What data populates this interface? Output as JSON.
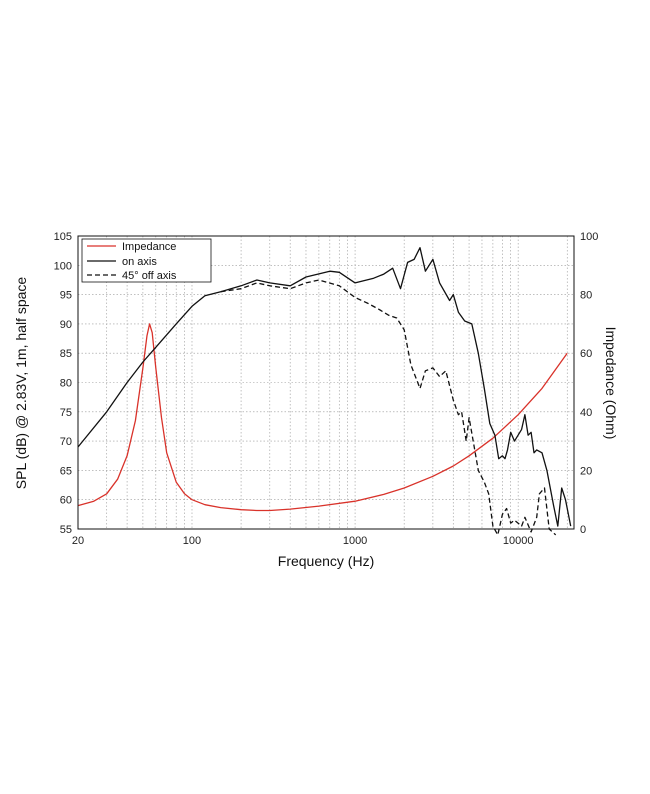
{
  "chart_data": {
    "type": "line",
    "title": "",
    "xlabel": "Frequency (Hz)",
    "ylabel": "SPL (dB) @ 2.83V, 1m, half space",
    "y2label": "Impedance (Ohm)",
    "xscale": "log",
    "xlim": [
      20,
      22000
    ],
    "ylim": [
      55,
      105
    ],
    "y2lim": [
      0,
      100
    ],
    "grid": true,
    "legend_position": "top-left",
    "x_ticks": [
      20,
      100,
      1000,
      10000
    ],
    "x_tick_labels": [
      "20",
      "100",
      "1000",
      "10000"
    ],
    "y_ticks": [
      55,
      60,
      65,
      70,
      75,
      80,
      85,
      90,
      95,
      100,
      105
    ],
    "y2_ticks": [
      0,
      20,
      40,
      60,
      80,
      100
    ],
    "series": [
      {
        "name": "Impedance",
        "axis": "right",
        "color": "#d9322a",
        "dash": "solid",
        "points": [
          [
            20,
            8
          ],
          [
            25,
            9.5
          ],
          [
            30,
            12
          ],
          [
            35,
            17
          ],
          [
            40,
            25
          ],
          [
            45,
            37
          ],
          [
            50,
            55
          ],
          [
            53,
            66
          ],
          [
            55,
            70
          ],
          [
            57,
            67
          ],
          [
            60,
            55
          ],
          [
            65,
            38
          ],
          [
            70,
            26
          ],
          [
            80,
            16
          ],
          [
            90,
            12
          ],
          [
            100,
            10
          ],
          [
            120,
            8.3
          ],
          [
            150,
            7.3
          ],
          [
            200,
            6.6
          ],
          [
            250,
            6.3
          ],
          [
            300,
            6.3
          ],
          [
            400,
            6.8
          ],
          [
            600,
            7.8
          ],
          [
            1000,
            9.5
          ],
          [
            1500,
            11.8
          ],
          [
            2000,
            14
          ],
          [
            3000,
            18
          ],
          [
            4000,
            21.5
          ],
          [
            5000,
            25
          ],
          [
            7000,
            31
          ],
          [
            10000,
            39
          ],
          [
            14000,
            48
          ],
          [
            20000,
            60
          ]
        ]
      },
      {
        "name": "on axis",
        "axis": "left",
        "color": "#111111",
        "dash": "solid",
        "points": [
          [
            20,
            69
          ],
          [
            30,
            75
          ],
          [
            40,
            80
          ],
          [
            50,
            83.5
          ],
          [
            60,
            86
          ],
          [
            80,
            90
          ],
          [
            100,
            93
          ],
          [
            120,
            94.8
          ],
          [
            150,
            95.5
          ],
          [
            200,
            96.5
          ],
          [
            250,
            97.5
          ],
          [
            300,
            97
          ],
          [
            400,
            96.5
          ],
          [
            500,
            98
          ],
          [
            700,
            99
          ],
          [
            800,
            98.8
          ],
          [
            1000,
            97
          ],
          [
            1300,
            97.8
          ],
          [
            1500,
            98.5
          ],
          [
            1700,
            99.5
          ],
          [
            1900,
            96
          ],
          [
            2100,
            100.5
          ],
          [
            2300,
            101
          ],
          [
            2500,
            103
          ],
          [
            2700,
            99
          ],
          [
            3000,
            101
          ],
          [
            3300,
            97
          ],
          [
            3800,
            94
          ],
          [
            4000,
            95
          ],
          [
            4300,
            92
          ],
          [
            4700,
            90.5
          ],
          [
            5200,
            90
          ],
          [
            5700,
            85
          ],
          [
            6200,
            79
          ],
          [
            6700,
            73
          ],
          [
            7200,
            71
          ],
          [
            7600,
            67
          ],
          [
            8000,
            67.5
          ],
          [
            8300,
            67
          ],
          [
            8600,
            68.5
          ],
          [
            9000,
            71.5
          ],
          [
            9500,
            70
          ],
          [
            10500,
            72
          ],
          [
            11000,
            74.5
          ],
          [
            11500,
            71
          ],
          [
            12000,
            71.5
          ],
          [
            12500,
            68
          ],
          [
            13000,
            68.5
          ],
          [
            14000,
            68
          ],
          [
            15000,
            65
          ],
          [
            16500,
            59
          ],
          [
            17500,
            55.5
          ],
          [
            18500,
            62
          ],
          [
            19500,
            60
          ],
          [
            21000,
            55.5
          ]
        ]
      },
      {
        "name": "45° off axis",
        "axis": "left",
        "color": "#111111",
        "dash": "dashed",
        "points": [
          [
            150,
            95.5
          ],
          [
            200,
            96
          ],
          [
            250,
            97
          ],
          [
            300,
            96.5
          ],
          [
            400,
            96
          ],
          [
            500,
            97
          ],
          [
            600,
            97.5
          ],
          [
            800,
            96.5
          ],
          [
            1000,
            94.5
          ],
          [
            1200,
            93.5
          ],
          [
            1400,
            92.5
          ],
          [
            1600,
            91.5
          ],
          [
            1800,
            91
          ],
          [
            2000,
            89
          ],
          [
            2200,
            83
          ],
          [
            2500,
            79
          ],
          [
            2700,
            82
          ],
          [
            3000,
            82.5
          ],
          [
            3300,
            81
          ],
          [
            3600,
            82
          ],
          [
            4000,
            77
          ],
          [
            4300,
            74.5
          ],
          [
            4500,
            75
          ],
          [
            4800,
            70
          ],
          [
            5000,
            74
          ],
          [
            5300,
            70
          ],
          [
            5700,
            65
          ],
          [
            6200,
            63
          ],
          [
            6600,
            61
          ],
          [
            7000,
            55.5
          ],
          [
            7500,
            54
          ],
          [
            8000,
            57.5
          ],
          [
            8500,
            58.5
          ],
          [
            9000,
            56
          ],
          [
            9500,
            56.5
          ],
          [
            10500,
            55.5
          ],
          [
            11000,
            57
          ],
          [
            12000,
            54.5
          ],
          [
            13000,
            57
          ],
          [
            13500,
            61
          ],
          [
            14500,
            62
          ],
          [
            15500,
            55
          ],
          [
            17000,
            54
          ]
        ]
      }
    ]
  }
}
